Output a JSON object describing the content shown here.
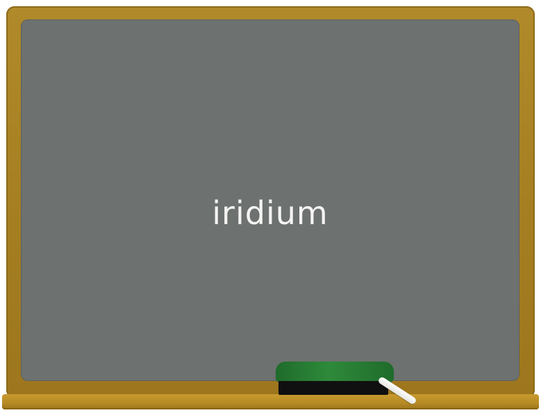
{
  "board": {
    "text": "iridium",
    "board_color": "#6d716f",
    "frame_color": "#a67f22",
    "text_color": "#f4f4f2"
  },
  "eraser": {
    "felt_color": "#2e8a3a",
    "base_color": "#101010"
  },
  "chalk": {
    "color": "#ffffff"
  }
}
